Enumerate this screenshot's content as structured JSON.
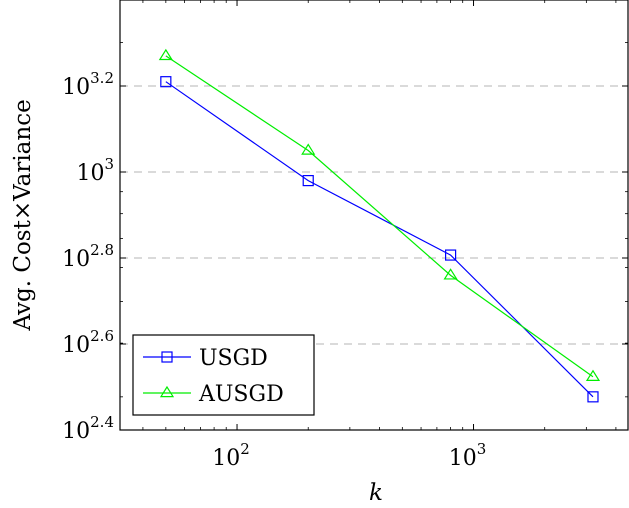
{
  "chart_data": {
    "type": "line",
    "xlabel": "k",
    "ylabel": "Avg.  Cost×Variance",
    "x_scale": "log",
    "y_scale": "log",
    "xlim": [
      32,
      4500
    ],
    "ylim": [
      251.19,
      2512
    ],
    "x_ticks": [
      {
        "value": 100,
        "base": "10",
        "exp": "2"
      },
      {
        "value": 1000,
        "base": "10",
        "exp": "3"
      }
    ],
    "y_ticks": [
      {
        "value": 251.19,
        "base": "10",
        "exp": "2.4"
      },
      {
        "value": 398.11,
        "base": "10",
        "exp": "2.6"
      },
      {
        "value": 630.96,
        "base": "10",
        "exp": "2.8"
      },
      {
        "value": 1000,
        "base": "10",
        "exp": "3"
      },
      {
        "value": 1584.9,
        "base": "10",
        "exp": "3.2"
      }
    ],
    "grid": "y-major-dashed",
    "legend_position": "bottom-left",
    "series": [
      {
        "name": "USGD",
        "color": "#0000ff",
        "marker": "square",
        "x": [
          50,
          200,
          800,
          3200
        ],
        "y": [
          1622,
          955,
          641,
          300
        ]
      },
      {
        "name": "AUSGD",
        "color": "#00ee00",
        "marker": "triangle",
        "x": [
          50,
          200,
          800,
          3200
        ],
        "y": [
          1862,
          1122,
          575,
          334
        ]
      }
    ]
  }
}
